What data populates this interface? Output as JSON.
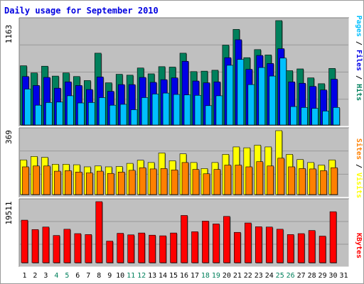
{
  "chart_title": "Daily usage for September 2010",
  "colors": {
    "background": "#ffffff",
    "outer_frame": "#cccccc",
    "plot_bg": "#c0c0c0",
    "hits": "#00805c",
    "files": "#0000e6",
    "pages": "#00c0ff",
    "visits": "#ffff00",
    "sites": "#ff8000",
    "kbytes": "#ff0000",
    "weekday_label": "#000000",
    "weekend_label": "#00805c",
    "title": "#0000e0"
  },
  "legend": {
    "pages": "Pages",
    "files": "Files",
    "hits": "Hits",
    "sites": "Sites",
    "visits": "Visits",
    "kbytes": "KBytes",
    "sep": " / "
  },
  "chart_data": [
    {
      "type": "bar",
      "panel": "hits-files-pages",
      "max_label": "1163",
      "ylim": [
        0,
        1163
      ],
      "categories": [
        "1",
        "2",
        "3",
        "4",
        "5",
        "6",
        "7",
        "8",
        "9",
        "10",
        "11",
        "12",
        "13",
        "14",
        "15",
        "16",
        "17",
        "18",
        "19",
        "20",
        "21",
        "22",
        "23",
        "24",
        "25",
        "26",
        "27",
        "28",
        "29",
        "30",
        "31"
      ],
      "weekend_days": [
        "4",
        "5",
        "11",
        "12",
        "18",
        "19",
        "25",
        "26"
      ],
      "series": [
        {
          "name": "Hits",
          "values": [
            660,
            580,
            655,
            545,
            580,
            540,
            495,
            800,
            470,
            565,
            555,
            635,
            570,
            650,
            645,
            800,
            595,
            600,
            610,
            890,
            1065,
            750,
            840,
            780,
            1163,
            605,
            625,
            525,
            460,
            630,
            0
          ]
        },
        {
          "name": "Files",
          "values": [
            540,
            440,
            530,
            410,
            480,
            440,
            395,
            535,
            375,
            450,
            450,
            530,
            475,
            505,
            525,
            710,
            490,
            470,
            480,
            750,
            950,
            620,
            775,
            685,
            850,
            480,
            465,
            430,
            390,
            510,
            0
          ]
        },
        {
          "name": "Pages",
          "values": [
            400,
            220,
            250,
            255,
            325,
            245,
            250,
            305,
            220,
            230,
            170,
            305,
            345,
            355,
            340,
            335,
            330,
            215,
            325,
            665,
            730,
            450,
            640,
            545,
            745,
            205,
            195,
            185,
            155,
            195,
            0
          ]
        }
      ]
    },
    {
      "type": "bar",
      "panel": "visits-sites",
      "max_label": "369",
      "ylim": [
        0,
        369
      ],
      "categories": [
        "1",
        "2",
        "3",
        "4",
        "5",
        "6",
        "7",
        "8",
        "9",
        "10",
        "11",
        "12",
        "13",
        "14",
        "15",
        "16",
        "17",
        "18",
        "19",
        "20",
        "21",
        "22",
        "23",
        "24",
        "25",
        "26",
        "27",
        "28",
        "29",
        "30",
        "31"
      ],
      "series": [
        {
          "name": "Visits",
          "values": [
            200,
            220,
            215,
            175,
            175,
            172,
            160,
            165,
            160,
            162,
            180,
            198,
            185,
            240,
            195,
            235,
            185,
            150,
            185,
            232,
            275,
            270,
            285,
            275,
            369,
            232,
            202,
            185,
            170,
            200,
            0
          ]
        },
        {
          "name": "Sites",
          "values": [
            160,
            165,
            165,
            135,
            138,
            130,
            125,
            135,
            122,
            130,
            140,
            155,
            148,
            150,
            142,
            185,
            145,
            120,
            145,
            170,
            170,
            160,
            190,
            165,
            210,
            160,
            150,
            148,
            138,
            155,
            0
          ]
        }
      ]
    },
    {
      "type": "bar",
      "panel": "kbytes",
      "max_label": "19511",
      "ylim": [
        0,
        19511
      ],
      "categories": [
        "1",
        "2",
        "3",
        "4",
        "5",
        "6",
        "7",
        "8",
        "9",
        "10",
        "11",
        "12",
        "13",
        "14",
        "15",
        "16",
        "17",
        "18",
        "19",
        "20",
        "21",
        "22",
        "23",
        "24",
        "25",
        "26",
        "27",
        "28",
        "29",
        "30",
        "31"
      ],
      "series": [
        {
          "name": "KBytes",
          "values": [
            13600,
            10600,
            11400,
            8700,
            10700,
            9300,
            9000,
            19511,
            6900,
            9400,
            8900,
            9500,
            8800,
            8600,
            9500,
            15100,
            9900,
            13300,
            12400,
            14800,
            9700,
            12700,
            11500,
            11400,
            10700,
            9000,
            9300,
            10300,
            8500,
            16300,
            0
          ]
        }
      ]
    }
  ]
}
